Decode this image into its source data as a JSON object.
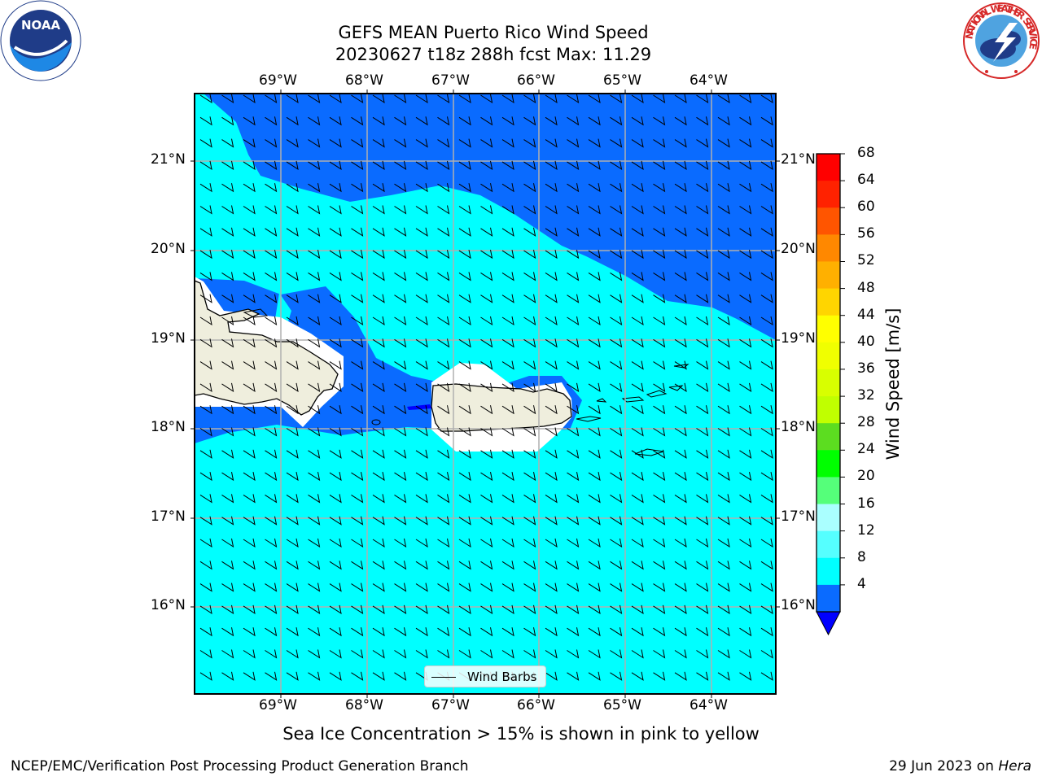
{
  "header": {
    "title_line1": "GEFS MEAN Puerto Rico Wind Speed",
    "title_line2": "20230627 t18z 288h fcst   Max: 11.29"
  },
  "logos": {
    "noaa_text": "NOAA",
    "nws_text": "NATIONAL WEATHER SERVICE"
  },
  "map": {
    "lon_ticks": [
      "69°W",
      "68°W",
      "67°W",
      "66°W",
      "65°W",
      "64°W"
    ],
    "lat_ticks": [
      "21°N",
      "20°N",
      "19°N",
      "18°N",
      "17°N",
      "16°N"
    ],
    "colors": {
      "sea_light": "#00ffff",
      "sea_medium": "#0a6bff",
      "land": "#efeedd",
      "ice_mask": "#ffffff",
      "grid": "#b0b0b0"
    }
  },
  "legend": {
    "label": "Wind Barbs"
  },
  "colorbar": {
    "label": "Wind Speed [m/s]",
    "ticks": [
      "68",
      "64",
      "60",
      "56",
      "52",
      "48",
      "44",
      "40",
      "36",
      "32",
      "28",
      "24",
      "20",
      "16",
      "12",
      "8",
      "4"
    ],
    "colors": [
      "#ff0000",
      "#ff2200",
      "#ff5500",
      "#ff8800",
      "#ffb000",
      "#ffd500",
      "#ffff00",
      "#f0ff00",
      "#d8ff00",
      "#c0ff00",
      "#5cdd20",
      "#00ff00",
      "#55ff7a",
      "#aaffff",
      "#55ffff",
      "#00ffff",
      "#0a6bff"
    ],
    "extend_color": "#0000ff"
  },
  "footer": {
    "subtitle": "Sea Ice Concentration > 15% is shown in pink to yellow",
    "left": "NCEP/EMC/Verification Post Processing Product Generation Branch",
    "right_date": "29 Jun 2023 on ",
    "right_host": "Hera"
  }
}
